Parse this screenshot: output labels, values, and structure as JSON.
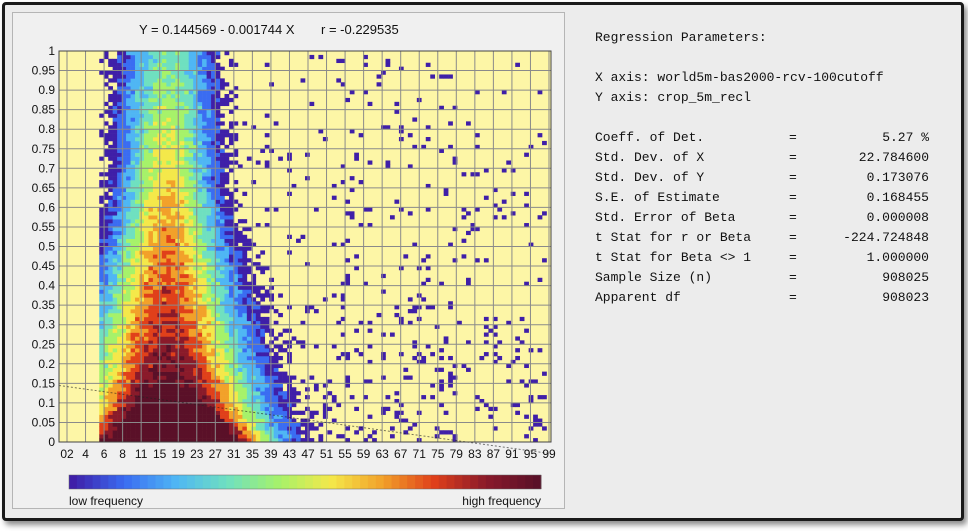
{
  "header": {
    "equation": "Y = 0.144569 - 0.001744 X",
    "r_value": "r = -0.229535"
  },
  "colorbar": {
    "low_label": "low frequency",
    "high_label": "high frequency",
    "colors": [
      "#3f1fa8",
      "#3a6cf2",
      "#4fb6f4",
      "#6fe0c0",
      "#a6f26a",
      "#f4e84a",
      "#f2a12a",
      "#e0401a",
      "#8a1a2a",
      "#5a1028"
    ]
  },
  "colors": {
    "plot_background": "#fdf6a6",
    "grid": "#8a8a8a"
  },
  "stats": {
    "title": "Regression Parameters:",
    "x_axis": "X axis: world5m-bas2000-rcv-100cutoff",
    "y_axis": "Y axis: crop_5m_recl",
    "rows": [
      {
        "label": "Coeff. of Det.",
        "eq": "=",
        "value": "5.27 %"
      },
      {
        "label": "Std. Dev. of X",
        "eq": "=",
        "value": "22.784600"
      },
      {
        "label": "Std. Dev. of Y",
        "eq": "=",
        "value": "0.173076"
      },
      {
        "label": "S.E. of Estimate",
        "eq": "=",
        "value": "0.168455"
      },
      {
        "label": "Std. Error of Beta",
        "eq": "=",
        "value": "0.000008"
      },
      {
        "label": "t Stat for r or Beta",
        "eq": "=",
        "value": "-224.724848"
      },
      {
        "label": "t Stat for Beta <> 1",
        "eq": "=",
        "value": "1.000000"
      },
      {
        "label": "Sample Size (n)",
        "eq": "=",
        "value": "908025"
      },
      {
        "label": "Apparent df",
        "eq": "=",
        "value": "908023"
      }
    ]
  },
  "chart_data": {
    "type": "heatmap",
    "title": "",
    "xlabel": "",
    "ylabel": "",
    "xlim": [
      0,
      100
    ],
    "ylim": [
      0,
      1
    ],
    "grid": true,
    "x_tick_labels": [
      "02",
      "4",
      "6",
      "8",
      "11",
      "15",
      "19",
      "23",
      "27",
      "31",
      "35",
      "39",
      "43",
      "47",
      "51",
      "55",
      "59",
      "63",
      "67",
      "71",
      "75",
      "79",
      "83",
      "87",
      "91",
      "95",
      "99"
    ],
    "y_tick_labels": [
      "0",
      "0.05",
      "0.1",
      "0.15",
      "0.2",
      "0.25",
      "0.3",
      "0.35",
      "0.4",
      "0.45",
      "0.5",
      "0.55",
      "0.6",
      "0.65",
      "0.7",
      "0.75",
      "0.8",
      "0.85",
      "0.9",
      "0.95",
      "1"
    ],
    "regression": {
      "intercept": 0.144569,
      "slope": -0.001744,
      "r": -0.229535
    },
    "density_regions": [
      {
        "level": "high",
        "x_range": [
          15,
          35
        ],
        "y_range": [
          0,
          0.1
        ]
      },
      {
        "level": "medium",
        "x_range": [
          12,
          40
        ],
        "y_range": [
          0,
          0.3
        ]
      },
      {
        "level": "low",
        "x_range": [
          8,
          50
        ],
        "y_range": [
          0,
          1
        ]
      }
    ]
  }
}
